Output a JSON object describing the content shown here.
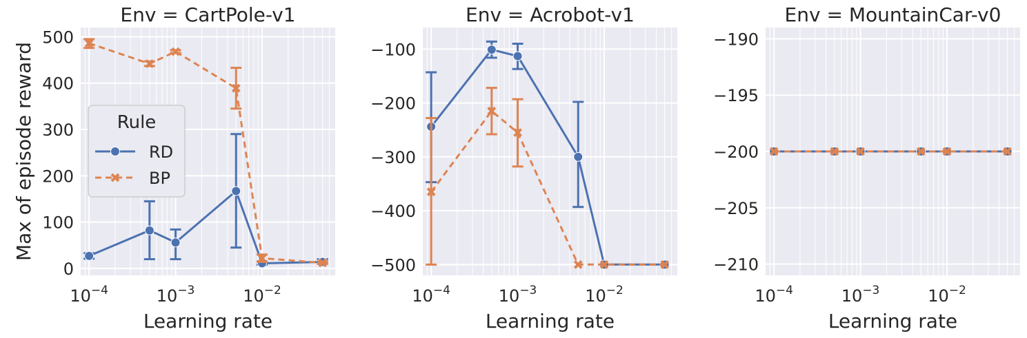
{
  "chart_data": {
    "type": "line",
    "shared": {
      "xlabel": "Learning rate",
      "ylabel": "Max of episode reward",
      "xscale": "log",
      "xlim": [
        8e-05,
        0.07
      ],
      "xticks": [
        {
          "value": 0.0001,
          "base": "10",
          "exp": "−4"
        },
        {
          "value": 0.001,
          "base": "10",
          "exp": "−3"
        },
        {
          "value": 0.01,
          "base": "10",
          "exp": "−2"
        }
      ],
      "legend": {
        "title": "Rule",
        "placement": "center-left",
        "panel": 0,
        "entries": [
          {
            "series": "RD",
            "label": "RD"
          },
          {
            "series": "BP",
            "label": "BP"
          }
        ]
      },
      "series_style": {
        "RD": {
          "color": "#4c72b0",
          "marker": "circle",
          "dash": ""
        },
        "BP": {
          "color": "#dd8452",
          "marker": "x",
          "dash": "9,6"
        }
      },
      "grid": true
    },
    "panels": [
      {
        "title": "Env = CartPole-v1",
        "ylim": [
          -15,
          520
        ],
        "yticks": [
          0,
          100,
          200,
          300,
          400,
          500
        ],
        "ytick_labels": [
          "0",
          "100",
          "200",
          "300",
          "400",
          "500"
        ],
        "x": [
          0.0001,
          0.0005,
          0.001,
          0.005,
          0.01,
          0.05
        ],
        "series": [
          {
            "name": "RD",
            "values": [
              27,
              82,
              56,
              167,
              11,
              14
            ],
            "err_low": [
              21,
              20,
              20,
              45,
              8,
              10
            ],
            "err_high": [
              33,
              145,
              84,
              290,
              15,
              20
            ]
          },
          {
            "name": "BP",
            "values": [
              486,
              442,
              468,
              389,
              22,
              12
            ],
            "err_low": [
              476,
              437,
              465,
              345,
              14,
              10
            ],
            "err_high": [
              495,
              447,
              471,
              433,
              30,
              15
            ]
          }
        ]
      },
      {
        "title": "Env = Acrobot-v1",
        "ylim": [
          -520,
          -60
        ],
        "yticks": [
          -500,
          -400,
          -300,
          -200,
          -100
        ],
        "ytick_labels": [
          "−500",
          "−400",
          "−300",
          "−200",
          "−100"
        ],
        "x": [
          0.0001,
          0.0005,
          0.001,
          0.005,
          0.01,
          0.05
        ],
        "series": [
          {
            "name": "RD",
            "values": [
              -244,
              -101,
              -113,
              -300,
              -500,
              -500
            ],
            "err_low": [
              -347,
              -116,
              -137,
              -393,
              -500,
              -500
            ],
            "err_high": [
              -143,
              -86,
              -90,
              -198,
              -500,
              -500
            ]
          },
          {
            "name": "BP",
            "values": [
              -365,
              -215,
              -255,
              -500,
              -500,
              -500
            ],
            "err_low": [
              -500,
              -258,
              -318,
              -500,
              -500,
              -500
            ],
            "err_high": [
              -228,
              -172,
              -193,
              -500,
              -500,
              -500
            ]
          }
        ]
      },
      {
        "title": "Env = MountainCar-v0",
        "ylim": [
          -211,
          -189
        ],
        "yticks": [
          -210,
          -205,
          -200,
          -195,
          -190
        ],
        "ytick_labels": [
          "−210",
          "−205",
          "−200",
          "−195",
          "−190"
        ],
        "x": [
          0.0001,
          0.0005,
          0.001,
          0.005,
          0.01,
          0.05
        ],
        "series": [
          {
            "name": "RD",
            "values": [
              -200,
              -200,
              -200,
              -200,
              -200,
              -200
            ]
          },
          {
            "name": "BP",
            "values": [
              -200,
              -200,
              -200,
              -200,
              -200,
              -200
            ]
          }
        ]
      }
    ]
  }
}
